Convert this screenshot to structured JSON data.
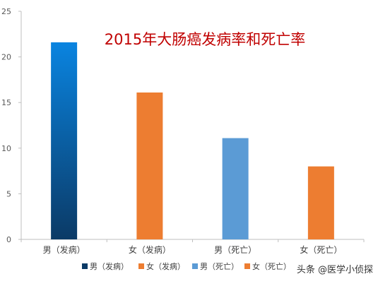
{
  "chart_data": {
    "type": "bar",
    "title": "2015年大肠癌发病率和死亡率",
    "categories": [
      "男（发病）",
      "女（发病）",
      "男（死亡）",
      "女（死亡）"
    ],
    "values": [
      21.6,
      16.1,
      11.1,
      8.0
    ],
    "ylim": [
      0,
      25
    ],
    "yticks": [
      0,
      5,
      10,
      15,
      20,
      25
    ],
    "xlabel": "",
    "ylabel": "",
    "grid": false,
    "legend_position": "bottom",
    "series": [
      {
        "name": "男（发病）",
        "value": 21.6,
        "color": "#0b6fc9",
        "gradient": [
          "#0a84e0",
          "#0b3a66"
        ]
      },
      {
        "name": "女（发病）",
        "value": 16.1,
        "color": "#ed7d31"
      },
      {
        "name": "男（死亡）",
        "value": 11.1,
        "color": "#5b9bd5"
      },
      {
        "name": "女（死亡）",
        "value": 8.0,
        "color": "#ed7d31"
      }
    ],
    "title_color": "#c00000",
    "axis_color": "#bfbfbf",
    "tick_label_color": "#595959"
  },
  "watermark": "头条 @医学小侦探"
}
